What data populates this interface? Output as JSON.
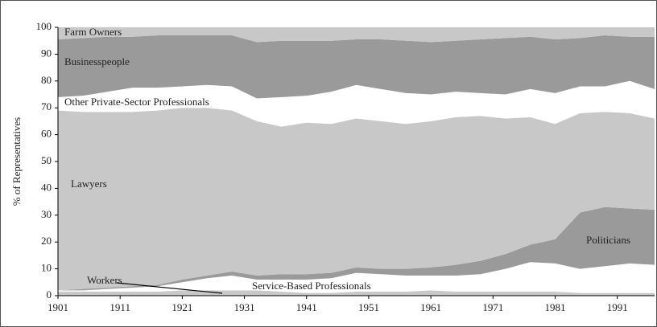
{
  "chart_data": {
    "type": "stacked_area",
    "y_label": "% of Representatives",
    "x": [
      1901,
      1905,
      1909,
      1913,
      1917,
      1921,
      1925,
      1929,
      1933,
      1937,
      1941,
      1945,
      1949,
      1953,
      1957,
      1961,
      1965,
      1969,
      1973,
      1977,
      1981,
      1985,
      1989,
      1993,
      1997
    ],
    "xlim": [
      1901,
      1997
    ],
    "xticks": [
      1901,
      1911,
      1921,
      1931,
      1941,
      1951,
      1961,
      1971,
      1981,
      1991
    ],
    "ylim": [
      0,
      100
    ],
    "yticks": [
      0,
      10,
      20,
      30,
      40,
      50,
      60,
      70,
      80,
      90,
      100
    ],
    "series": [
      {
        "name": "Workers",
        "color": "#c8c8c8",
        "values": [
          1.5,
          1.5,
          1.5,
          1.5,
          1.5,
          2,
          2,
          2,
          2,
          1.5,
          1,
          1,
          1.5,
          1.5,
          1.5,
          2,
          1.5,
          1.5,
          1.5,
          1.5,
          1.5,
          1,
          1,
          1,
          1
        ]
      },
      {
        "name": "Service-Based Professionals",
        "color": "#ffffff",
        "values": [
          0.5,
          0.5,
          1,
          1.5,
          2,
          3,
          4.5,
          5.5,
          4,
          4.5,
          5,
          5.5,
          7,
          6.5,
          6,
          5.5,
          6,
          6.5,
          8.5,
          11,
          10.5,
          9,
          10,
          11,
          10.5
        ]
      },
      {
        "name": "Politicians",
        "color": "#9a9a9a",
        "values": [
          0,
          0.5,
          0.5,
          0.5,
          0.5,
          1,
          1,
          1.5,
          1.5,
          2,
          2,
          2,
          2,
          2,
          2.5,
          3,
          4,
          5,
          5.5,
          6.5,
          9,
          21,
          22,
          20.5,
          20.5
        ]
      },
      {
        "name": "Lawyers",
        "color": "#c8c8c8",
        "values": [
          67,
          66,
          65.5,
          65,
          65,
          64,
          62.5,
          60,
          57.5,
          55,
          56.5,
          55.5,
          55.5,
          55,
          54,
          54.5,
          55,
          54,
          50.5,
          47.5,
          43,
          37,
          35.5,
          35.5,
          34
        ]
      },
      {
        "name": "Other Private-Sector Professionals",
        "color": "#ffffff",
        "values": [
          5,
          6,
          7.5,
          9,
          8.5,
          8,
          8.5,
          9,
          8.5,
          11,
          10,
          12,
          12.5,
          12,
          11.5,
          10,
          9.5,
          8.5,
          9,
          10.5,
          11.5,
          10,
          9.5,
          12,
          11
        ]
      },
      {
        "name": "Businesspeople",
        "color": "#9a9a9a",
        "values": [
          21.5,
          21.5,
          20.5,
          19,
          19.5,
          19,
          18.5,
          19,
          21,
          21,
          20.5,
          19,
          17,
          18.5,
          19.5,
          19.5,
          19,
          20,
          21,
          19.5,
          20,
          18,
          19,
          16.5,
          19.5
        ]
      },
      {
        "name": "Farm Owners",
        "color": "#c8c8c8",
        "values": [
          4.5,
          4,
          3.5,
          3.5,
          3,
          3,
          3,
          3,
          5.5,
          5,
          5,
          5,
          4.5,
          4.5,
          5,
          5.5,
          5,
          4.5,
          4,
          3.5,
          4.5,
          4,
          3,
          3.5,
          3.5
        ]
      }
    ]
  }
}
